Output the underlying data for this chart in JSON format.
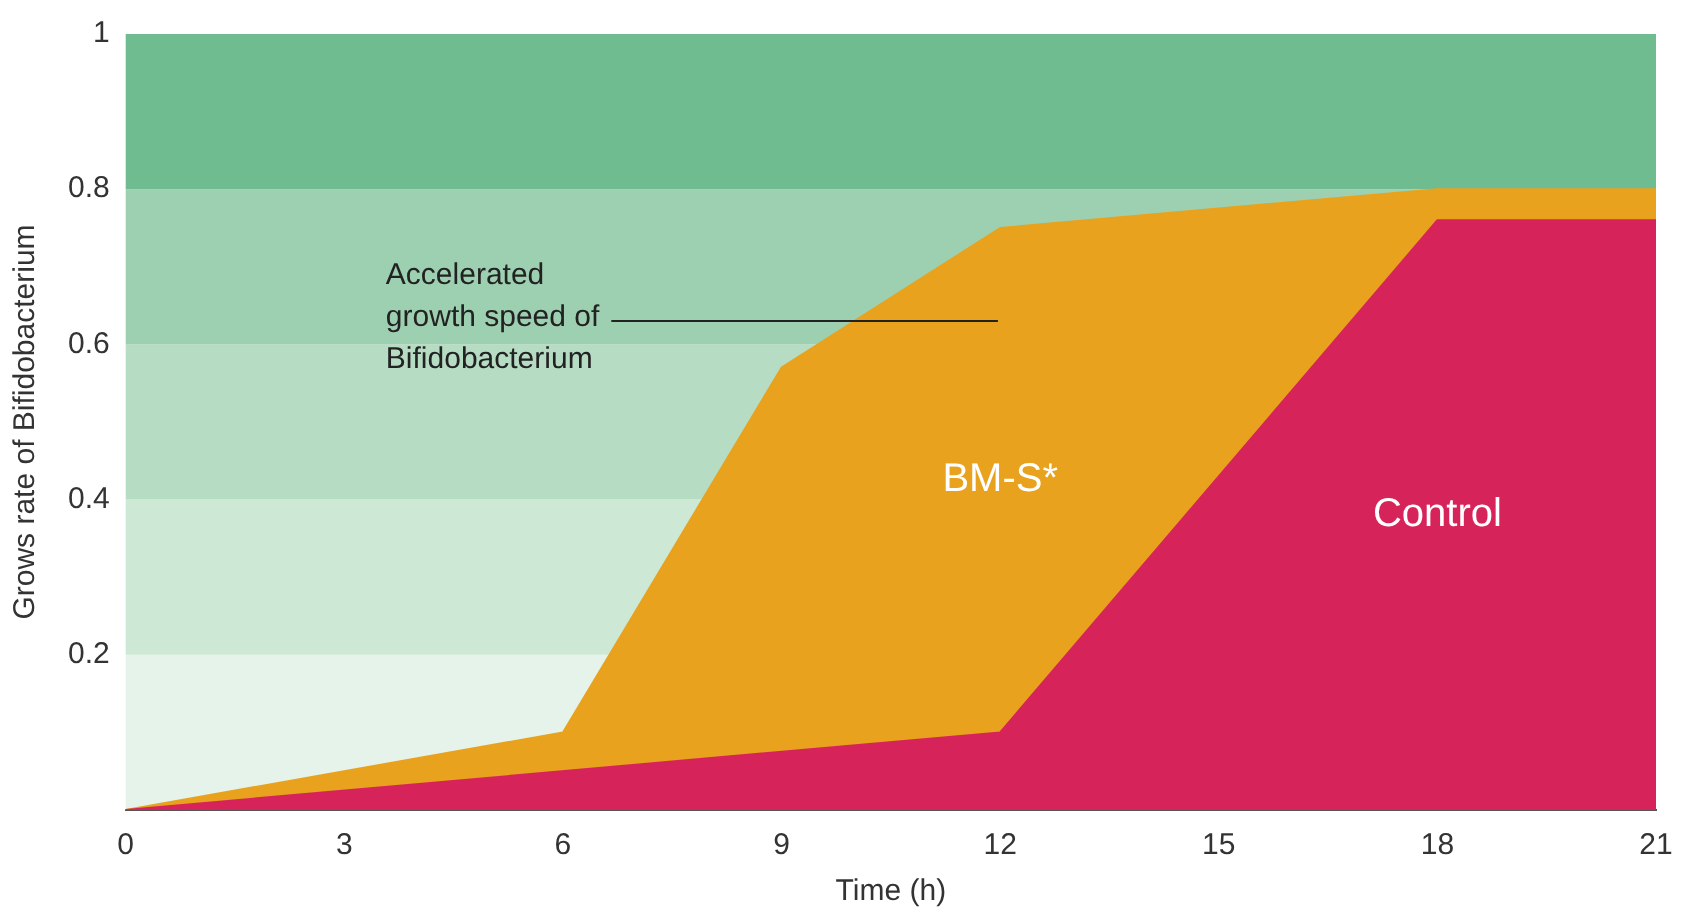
{
  "chart_data": {
    "type": "area",
    "xlabel": "Time (h)",
    "ylabel": "Grows rate of Bifidobacterium",
    "xlim": [
      0,
      21
    ],
    "xticks": [
      0,
      3,
      6,
      9,
      12,
      15,
      18,
      21
    ],
    "ylim": [
      0,
      1
    ],
    "yticks": [
      0.2,
      0.4,
      0.6,
      0.8,
      1
    ],
    "grid": false,
    "series": [
      {
        "name": "BM-S*",
        "color": "#e8a21e",
        "x": [
          0,
          6,
          9,
          12,
          18,
          21
        ],
        "values": [
          0,
          0.1,
          0.57,
          0.75,
          0.8,
          0.8
        ]
      },
      {
        "name": "Control",
        "color": "#d6245a",
        "x": [
          0,
          12,
          18,
          21
        ],
        "values": [
          0,
          0.1,
          0.76,
          0.76
        ]
      }
    ],
    "bands": [
      {
        "axis": "y",
        "from": 0,
        "to": 0.2,
        "color": "#e6f3ea"
      },
      {
        "axis": "y",
        "from": 0.2,
        "to": 0.4,
        "color": "#cde8d5"
      },
      {
        "axis": "y",
        "from": 0.4,
        "to": 0.6,
        "color": "#b7dcc4"
      },
      {
        "axis": "y",
        "from": 0.6,
        "to": 0.8,
        "color": "#9dd0b0"
      },
      {
        "axis": "y",
        "from": 0.8,
        "to": 1,
        "color": "#6fbc90"
      }
    ],
    "annotations": [
      "Accelerated growth speed of Bifidobacterium"
    ]
  }
}
